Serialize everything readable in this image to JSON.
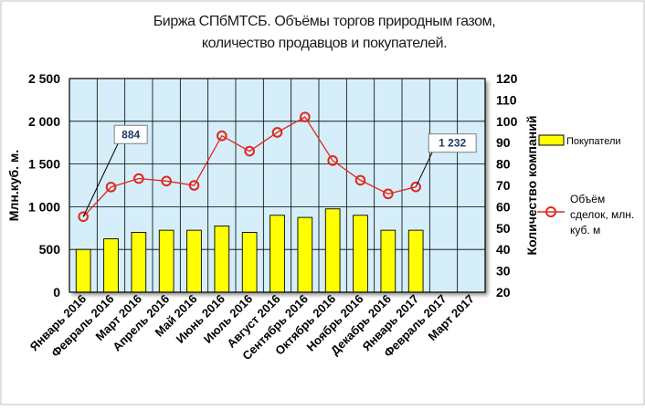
{
  "chart_data": {
    "type": "bar",
    "title_lines": [
      "Биржа СПбМТСБ. Объёмы торгов природным газом,",
      "количество продавцов и покупателей."
    ],
    "categories": [
      "Январь 2016",
      "Февраль 2016",
      "Март 2016",
      "Апрель 2016",
      "Май 2016",
      "Июнь 2016",
      "Июль 2016",
      "Август 2016",
      "Сентябрь 2016",
      "Октябрь 2016",
      "Ноябрь 2016",
      "Декабрь 2016",
      "Январь 2017",
      "Февраль 2017",
      "Март 2017"
    ],
    "ylabel_left": "Млн.куб. м.",
    "ylabel_right": "Количество компаний",
    "y_left_range": [
      0,
      2500
    ],
    "y_left_ticks": [
      "0",
      "500",
      "1 000",
      "1 500",
      "2 000",
      "2 500"
    ],
    "y_right_range": [
      20,
      120
    ],
    "y_right_ticks": [
      "20",
      "30",
      "40",
      "50",
      "60",
      "70",
      "80",
      "90",
      "100",
      "110",
      "120"
    ],
    "grid": true,
    "series": [
      {
        "name": "Покупатели",
        "kind": "bar",
        "axis": "right",
        "color": "#ffff00",
        "values": [
          40,
          45,
          48,
          49,
          49,
          51,
          48,
          56,
          55,
          59,
          56,
          49,
          49,
          null,
          null
        ]
      },
      {
        "name": "Объём сделок, млн. куб. м",
        "kind": "line",
        "axis": "left",
        "color": "#e0281e",
        "values": [
          884,
          1230,
          1330,
          1300,
          1250,
          1830,
          1650,
          1870,
          2050,
          1540,
          1310,
          1150,
          1232,
          null,
          null
        ]
      }
    ],
    "annotations": [
      {
        "label": "884",
        "category": "Январь 2016"
      },
      {
        "label": "1 232",
        "category": "Январь 2017"
      }
    ],
    "legend_position": "right"
  }
}
